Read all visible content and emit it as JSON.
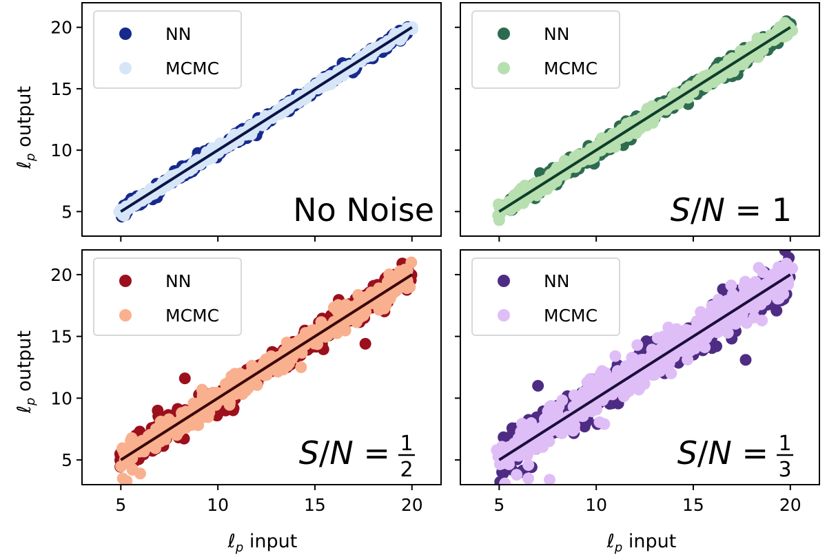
{
  "figure": {
    "type": "scatter-grid",
    "rows": 2,
    "cols": 2
  },
  "labels": {
    "ylabel_prefix": "ℓ",
    "ylabel_sub": "p",
    "ylabel_suffix": " output",
    "xlabel_prefix": "ℓ",
    "xlabel_sub": "p",
    "xlabel_suffix": " input"
  },
  "chart_data": [
    {
      "type": "scatter",
      "panel": "top-left",
      "annotation": {
        "text": "No Noise",
        "math": false
      },
      "xlim": [
        3,
        21.5
      ],
      "ylim": [
        3,
        22
      ],
      "xticks": [
        5,
        10,
        15,
        20
      ],
      "yticks": [
        5,
        10,
        15,
        20
      ],
      "show_xticklabels": false,
      "show_yticklabels": true,
      "legend": {
        "placement": "top-left",
        "entries": [
          "NN",
          "MCMC"
        ]
      },
      "colors": {
        "nn": "#172a8c",
        "mcmc": "#d6e6f8",
        "line": "#0b1445"
      },
      "series": [
        {
          "name": "NN",
          "x_range": [
            5,
            20
          ],
          "scatter_sd": 0.22,
          "outliers": []
        },
        {
          "name": "MCMC",
          "x_range": [
            5,
            20
          ],
          "scatter_sd": 0.15,
          "outliers": []
        }
      ],
      "reference_line": {
        "x": [
          5,
          20
        ],
        "y": [
          5,
          20
        ]
      }
    },
    {
      "type": "scatter",
      "panel": "top-right",
      "annotation": {
        "text": "S/N = 1",
        "math": true,
        "frac": null
      },
      "xlim": [
        3,
        21.5
      ],
      "ylim": [
        3,
        22
      ],
      "xticks": [
        5,
        10,
        15,
        20
      ],
      "yticks": [
        5,
        10,
        15,
        20
      ],
      "show_xticklabels": false,
      "show_yticklabels": false,
      "legend": {
        "placement": "top-left",
        "entries": [
          "NN",
          "MCMC"
        ]
      },
      "colors": {
        "nn": "#2d6b4f",
        "mcmc": "#b7dfb0",
        "line": "#0f3d2a"
      },
      "series": [
        {
          "name": "NN",
          "x_range": [
            5,
            20
          ],
          "scatter_sd": 0.35,
          "outliers": []
        },
        {
          "name": "MCMC",
          "x_range": [
            5,
            20
          ],
          "scatter_sd": 0.3,
          "outliers": [
            [
              5.0,
              4.3
            ]
          ]
        }
      ],
      "reference_line": {
        "x": [
          5,
          20
        ],
        "y": [
          5,
          20
        ]
      }
    },
    {
      "type": "scatter",
      "panel": "bottom-left",
      "annotation": {
        "text": "S/N = 1/2",
        "math": true,
        "frac": [
          "1",
          "2"
        ]
      },
      "xlim": [
        3,
        21.5
      ],
      "ylim": [
        3,
        22
      ],
      "xticks": [
        5,
        10,
        15,
        20
      ],
      "yticks": [
        5,
        10,
        15,
        20
      ],
      "show_xticklabels": true,
      "show_yticklabels": true,
      "legend": {
        "placement": "top-left",
        "entries": [
          "NN",
          "MCMC"
        ]
      },
      "colors": {
        "nn": "#9c0f1c",
        "mcmc": "#f9b08f",
        "line": "#3a0808"
      },
      "series": [
        {
          "name": "NN",
          "x_range": [
            5,
            20
          ],
          "scatter_sd": 0.55,
          "outliers": [
            [
              8.3,
              11.6
            ],
            [
              17.6,
              14.4
            ],
            [
              10.4,
              9.0
            ],
            [
              6.9,
              9.0
            ]
          ]
        },
        {
          "name": "MCMC",
          "x_range": [
            5,
            20
          ],
          "scatter_sd": 0.5,
          "outliers": [
            [
              5.1,
              3.5
            ],
            [
              5.3,
              3.3
            ],
            [
              5.6,
              4.2
            ],
            [
              6.0,
              3.9
            ]
          ]
        }
      ],
      "reference_line": {
        "x": [
          5,
          20
        ],
        "y": [
          5,
          20
        ]
      }
    },
    {
      "type": "scatter",
      "panel": "bottom-right",
      "annotation": {
        "text": "S/N = 1/3",
        "math": true,
        "frac": [
          "1",
          "3"
        ]
      },
      "xlim": [
        3,
        21.5
      ],
      "ylim": [
        3,
        22
      ],
      "xticks": [
        5,
        10,
        15,
        20
      ],
      "yticks": [
        5,
        10,
        15,
        20
      ],
      "show_xticklabels": true,
      "show_yticklabels": false,
      "legend": {
        "placement": "top-left",
        "entries": [
          "NN",
          "MCMC"
        ]
      },
      "colors": {
        "nn": "#4e2c84",
        "mcmc": "#dfbef7",
        "line": "#1a0f3a"
      },
      "series": [
        {
          "name": "NN",
          "x_range": [
            5,
            20
          ],
          "scatter_sd": 0.85,
          "outliers": [
            [
              17.7,
              13.1
            ],
            [
              5.4,
              6.3
            ],
            [
              7.0,
              11.0
            ],
            [
              9.4,
              7.7
            ]
          ]
        },
        {
          "name": "MCMC",
          "x_range": [
            5,
            20
          ],
          "scatter_sd": 0.8,
          "outliers": [
            [
              5.3,
              3.1
            ],
            [
              6.5,
              3.5
            ],
            [
              7.6,
              3.4
            ],
            [
              5.9,
              3.8
            ]
          ]
        }
      ],
      "reference_line": {
        "x": [
          5,
          20
        ],
        "y": [
          5,
          20
        ]
      }
    }
  ]
}
